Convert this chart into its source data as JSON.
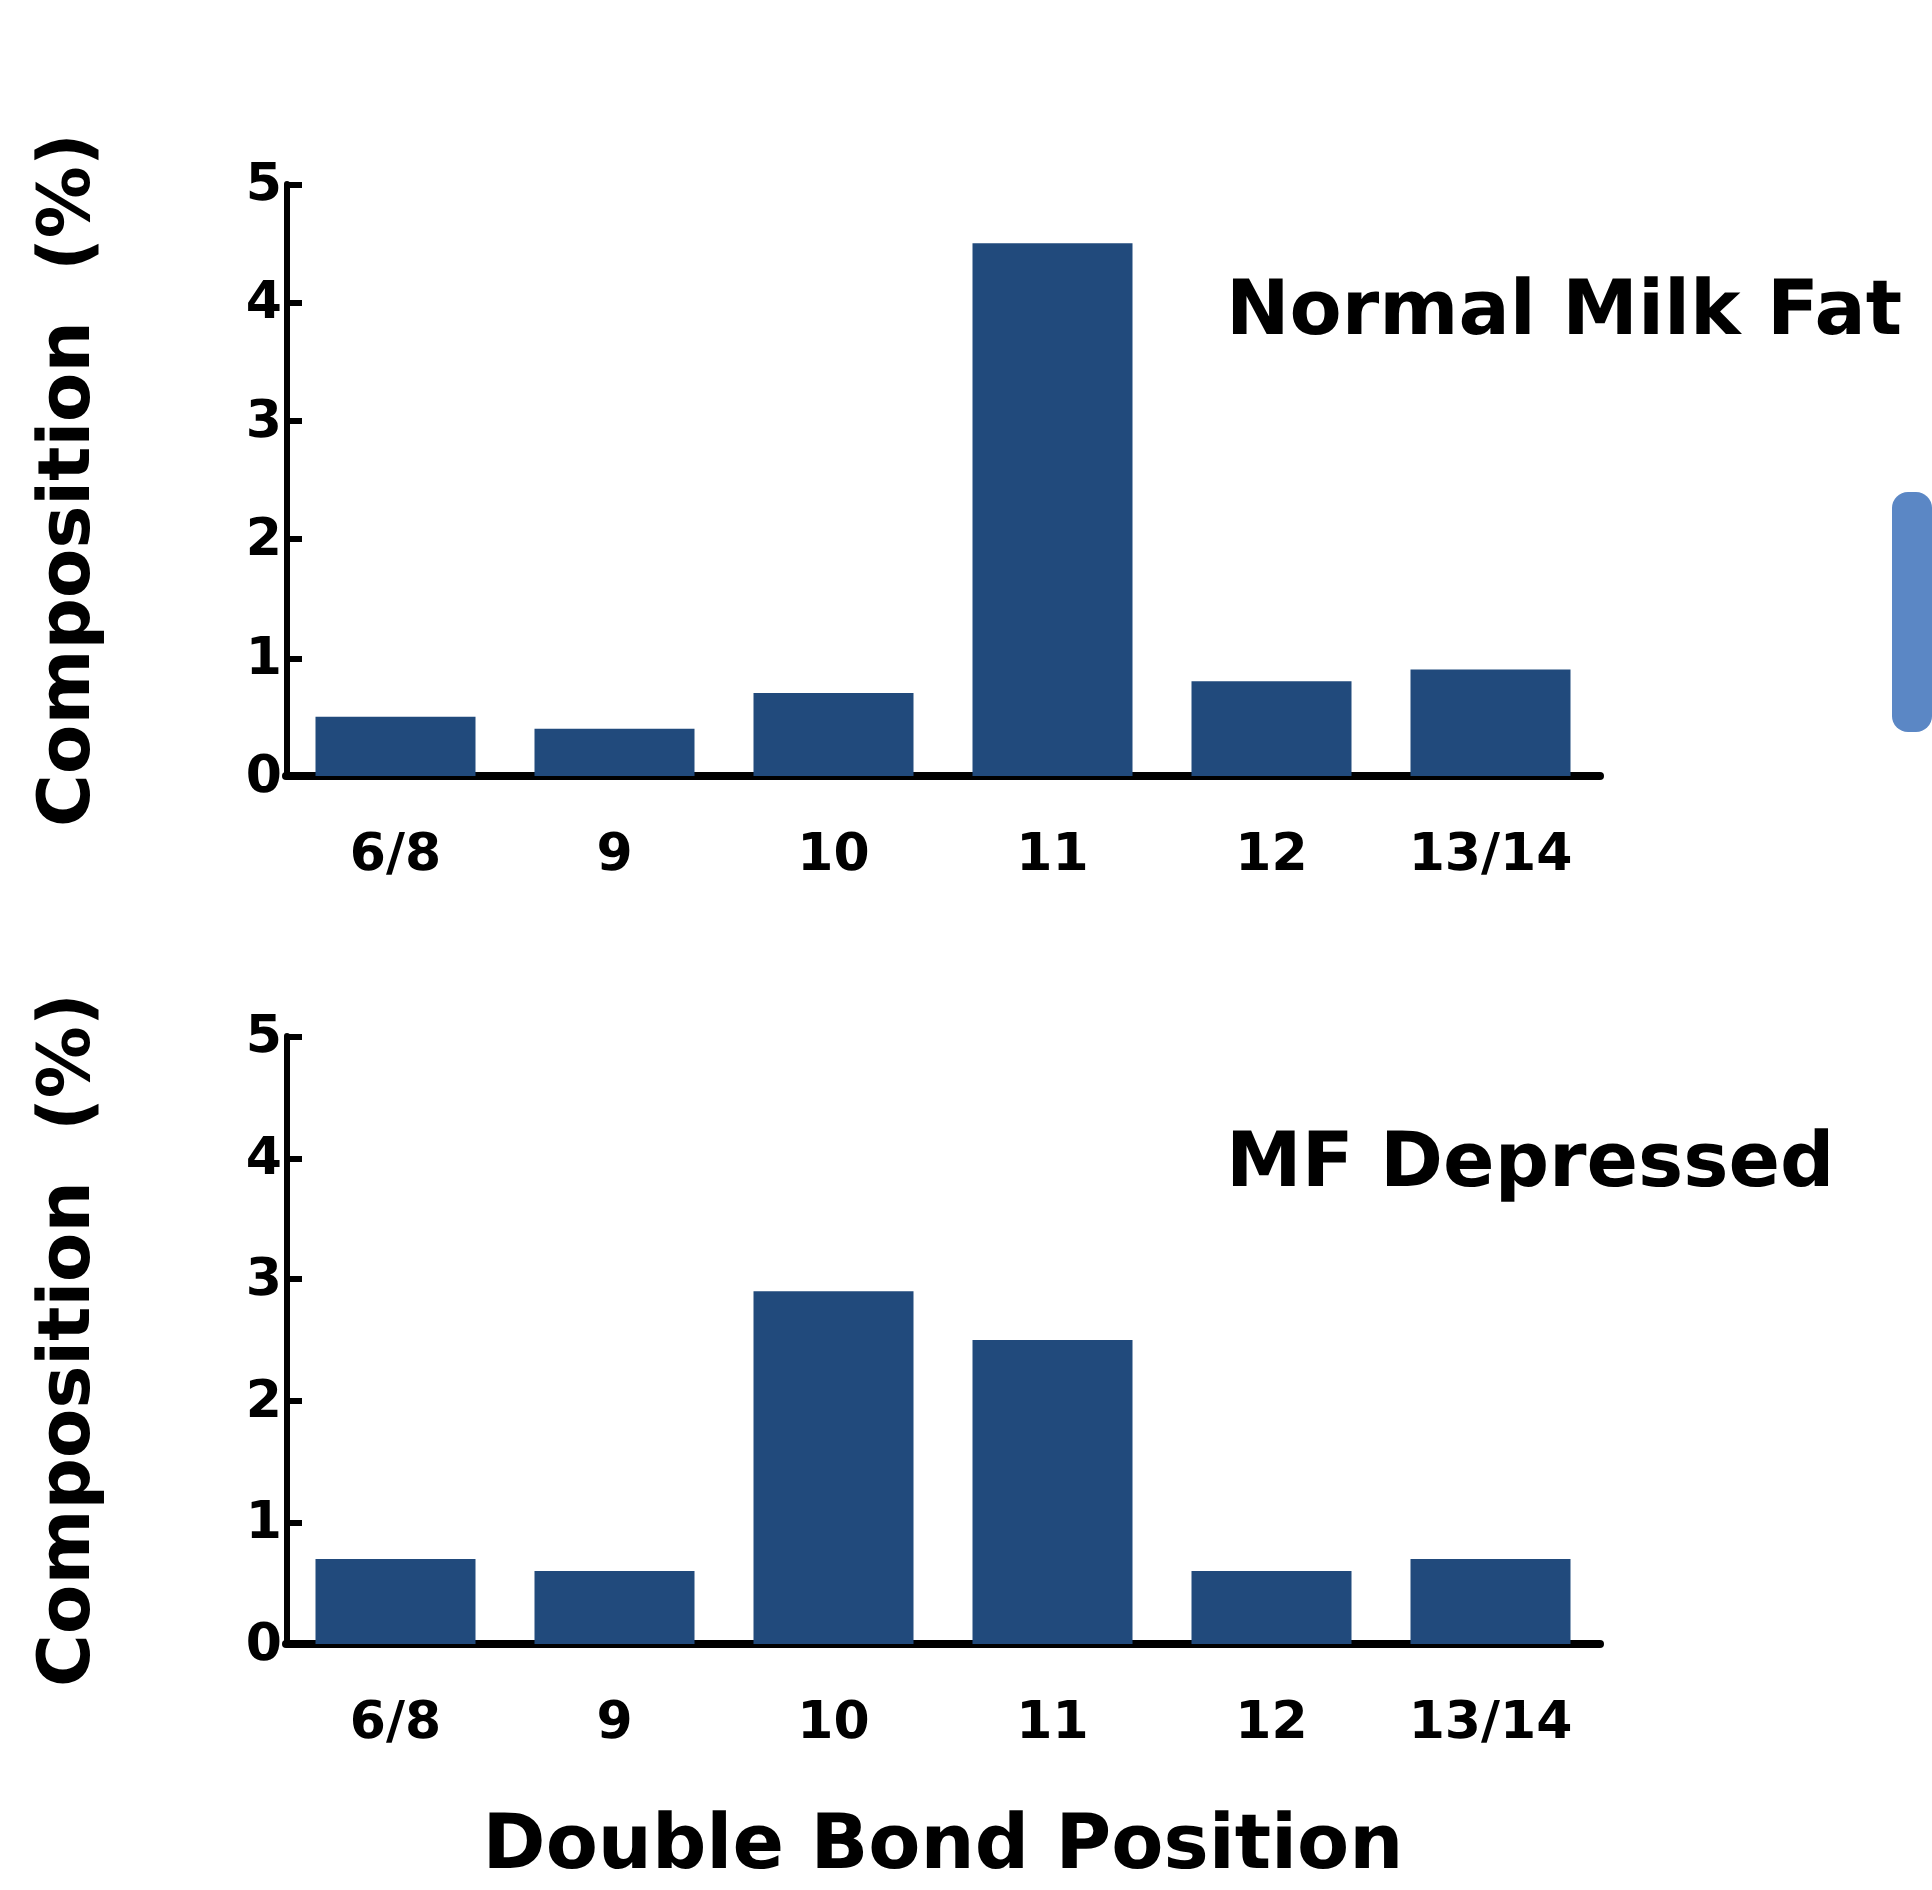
{
  "chart_data": [
    {
      "type": "bar",
      "title": "Normal Milk Fat",
      "ylabel": "Composition  (%)",
      "categories": [
        "6/8",
        "9",
        "10",
        "11",
        "12",
        "13/14"
      ],
      "values": [
        0.5,
        0.4,
        0.7,
        4.5,
        0.8,
        0.9
      ],
      "color": "#214a7c",
      "ylim": [
        0,
        5
      ],
      "yticks": [
        0,
        1,
        2,
        3,
        4,
        5
      ]
    },
    {
      "type": "bar",
      "title": "MF Depressed",
      "ylabel": "Composition  (%)",
      "xlabel": "Double Bond Position",
      "categories": [
        "6/8",
        "9",
        "10",
        "11",
        "12",
        "13/14"
      ],
      "values": [
        0.7,
        0.6,
        2.9,
        2.5,
        0.6,
        0.7
      ],
      "color": "#214a7c",
      "ylim": [
        0,
        5
      ],
      "yticks": [
        0,
        1,
        2,
        3,
        4,
        5
      ]
    }
  ]
}
